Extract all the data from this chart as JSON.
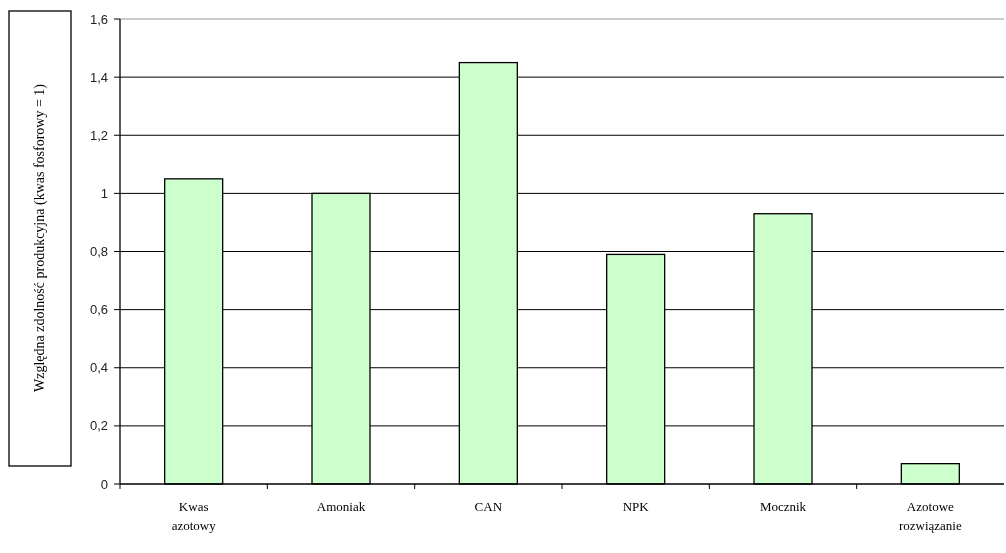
{
  "chart_data": {
    "type": "bar",
    "ylabel": "Względna zdolność produkcyjna (kwas fosforowy = 1)",
    "categories": [
      "Kwas azotowy",
      "Amoniak",
      "CAN",
      "NPK",
      "Mocznik",
      "Azotowe rozwiązanie"
    ],
    "values": [
      1.05,
      1.0,
      1.45,
      0.79,
      0.93,
      0.07
    ],
    "color": "#ccffcc",
    "ylim": [
      0,
      1.6
    ],
    "yticks": [
      {
        "value": 0,
        "label": "0"
      },
      {
        "value": 0.2,
        "label": "0,2"
      },
      {
        "value": 0.4,
        "label": "0,4"
      },
      {
        "value": 0.6,
        "label": "0,6"
      },
      {
        "value": 0.8,
        "label": "0,8"
      },
      {
        "value": 1,
        "label": "1"
      },
      {
        "value": 1.2,
        "label": "1,2"
      },
      {
        "value": 1.4,
        "label": "1,4"
      },
      {
        "value": 1.6,
        "label": "1,6"
      }
    ],
    "grid": "y"
  }
}
